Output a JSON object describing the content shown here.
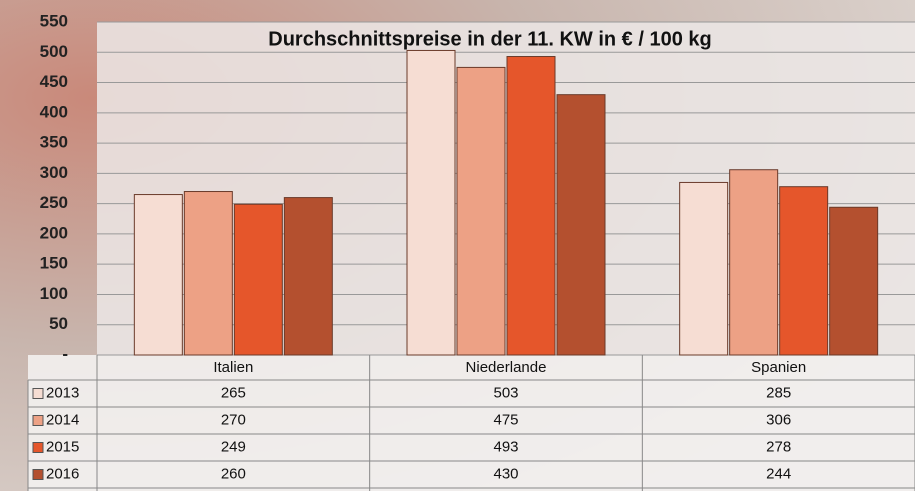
{
  "chart_data": {
    "type": "bar",
    "title": "Durchschnittspreise in der 11. KW in € / 100 kg",
    "categories": [
      "Italien",
      "Niederlande",
      "Spanien"
    ],
    "series": [
      {
        "name": "2013",
        "color": "#f6ddd3",
        "values": [
          265,
          503,
          285
        ]
      },
      {
        "name": "2014",
        "color": "#eda185",
        "values": [
          270,
          475,
          306
        ]
      },
      {
        "name": "2015",
        "color": "#e5562b",
        "values": [
          249,
          493,
          278
        ]
      },
      {
        "name": "2016",
        "color": "#b4502f",
        "values": [
          260,
          430,
          244
        ]
      }
    ],
    "ylim": [
      0,
      550
    ],
    "yticks": [
      {
        "value": 0,
        "label": "-"
      },
      50,
      100,
      150,
      200,
      250,
      300,
      350,
      400,
      450,
      500,
      550
    ],
    "grid": true
  }
}
